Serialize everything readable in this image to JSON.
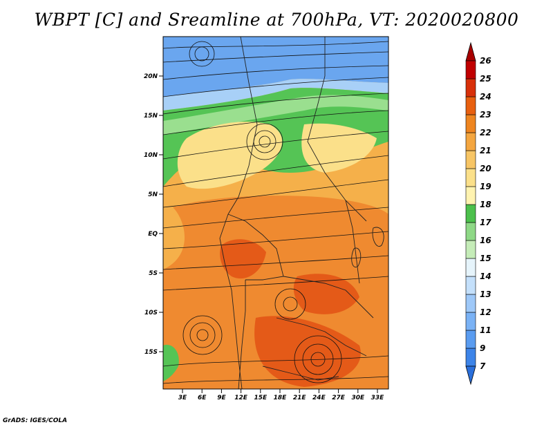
{
  "title": "WBPT [C] and Sreamline at 700hPa, VT: 2020020800",
  "credit": "GrADS: IGES/COLA",
  "lat_labels": [
    "20N",
    "15N",
    "10N",
    "5N",
    "EQ",
    "5S",
    "10S",
    "15S"
  ],
  "lon_labels": [
    "3E",
    "6E",
    "9E",
    "12E",
    "15E",
    "18E",
    "21E",
    "24E",
    "27E",
    "30E",
    "33E"
  ],
  "colorbar": {
    "labels": [
      "7",
      "9",
      "11",
      "12",
      "13",
      "14",
      "15",
      "16",
      "17",
      "18",
      "19",
      "20",
      "21",
      "22",
      "23",
      "24",
      "25",
      "26"
    ],
    "colors": [
      "#2a6fdb",
      "#3d84e8",
      "#5a9cf0",
      "#7ab2f5",
      "#9ec8f8",
      "#c4e0fb",
      "#e6f4fb",
      "#c5ecb8",
      "#8ed886",
      "#4cc04c",
      "#fff3b0",
      "#fbe08a",
      "#f7c565",
      "#f4a640",
      "#ee8520",
      "#e86010",
      "#d8300a",
      "#c00000",
      "#a80000"
    ]
  },
  "colors": {
    "blue": "#6aa6ef",
    "lightblue": "#a8d0f7",
    "green": "#55c455",
    "lightgreen": "#9adf8f",
    "yellow": "#fbe08a",
    "orange": "#f5b04a",
    "darkorange": "#ef8a30",
    "red": "#e45a18"
  }
}
